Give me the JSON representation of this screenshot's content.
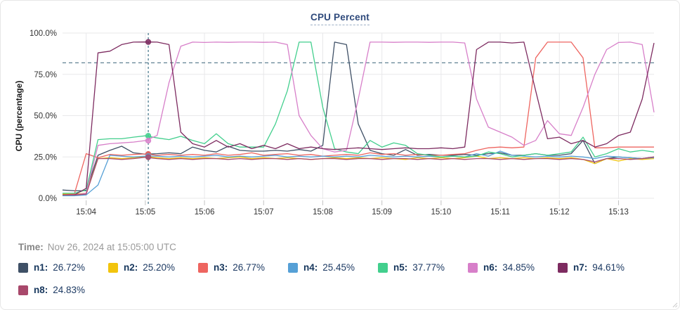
{
  "title": "CPU Percent",
  "time": {
    "label": "Time:",
    "value": "Nov 26, 2024 at 15:05:00 UTC"
  },
  "legend": [
    {
      "id": "n1",
      "label": "n1:",
      "value": "26.72%",
      "color": "#3f5066"
    },
    {
      "id": "n2",
      "label": "n2:",
      "value": "25.20%",
      "color": "#f2c40d"
    },
    {
      "id": "n3",
      "label": "n3:",
      "value": "26.77%",
      "color": "#ee6560"
    },
    {
      "id": "n4",
      "label": "n4:",
      "value": "25.45%",
      "color": "#56a0d6"
    },
    {
      "id": "n5",
      "label": "n5:",
      "value": "37.77%",
      "color": "#42cf8d"
    },
    {
      "id": "n6",
      "label": "n6:",
      "value": "34.85%",
      "color": "#d77fc9"
    },
    {
      "id": "n7",
      "label": "n7:",
      "value": "94.61%",
      "color": "#7d2b60"
    },
    {
      "id": "n8",
      "label": "n8:",
      "value": "24.83%",
      "color": "#a8486b"
    }
  ],
  "style_colors": {
    "grid": "#e8e8ea",
    "tick_text": "#333333",
    "axis_title": "#1a1a1a",
    "threshold_line": "#4e7388",
    "crosshair_line": "#3f7186",
    "title_text": "#2f4a7c"
  },
  "chart_data": {
    "type": "line",
    "title": "CPU Percent",
    "xlabel": "",
    "ylabel": "CPU (percentage)",
    "ylim": [
      0,
      100
    ],
    "y_tick_values": [
      0,
      25,
      50,
      75,
      100
    ],
    "y_tick_labels": [
      "0.0%",
      "25.0%",
      "50.0%",
      "75.0%",
      "100.0%"
    ],
    "x_tick_minutes": [
      4,
      5,
      6,
      7,
      8,
      9,
      10,
      11,
      12,
      13
    ],
    "x_tick_labels": [
      "15:04",
      "15:05",
      "15:06",
      "15:07",
      "15:08",
      "15:09",
      "15:10",
      "15:11",
      "15:12",
      "15:13"
    ],
    "x_range_minutes": [
      3.6,
      13.6
    ],
    "grid": true,
    "legend_position": "bottom",
    "threshold_percent": 82,
    "crosshair_minute": 5.05,
    "crosshair_index": 7,
    "crosshair_values": {
      "n1": 26.72,
      "n2": 25.2,
      "n3": 26.77,
      "n4": 25.45,
      "n5": 37.77,
      "n6": 34.85,
      "n7": 94.61,
      "n8": 24.83
    },
    "x_minutes": [
      3.6,
      3.8,
      4.0,
      4.2,
      4.4,
      4.6,
      4.8,
      5.0,
      5.2,
      5.4,
      5.6,
      5.8,
      6.0,
      6.2,
      6.4,
      6.6,
      6.8,
      7.0,
      7.2,
      7.4,
      7.6,
      7.8,
      8.0,
      8.2,
      8.4,
      8.6,
      8.8,
      9.0,
      9.2,
      9.4,
      9.6,
      9.8,
      10.0,
      10.2,
      10.4,
      10.6,
      10.8,
      11.0,
      11.2,
      11.4,
      11.6,
      11.8,
      12.0,
      12.2,
      12.4,
      12.6,
      12.8,
      13.0,
      13.2,
      13.4,
      13.6
    ],
    "series": [
      {
        "name": "n1",
        "color": "#3f5066",
        "values": [
          5,
          4.5,
          4.5,
          26,
          29,
          31.5,
          27.5,
          26.7,
          27,
          27.5,
          27,
          31,
          29,
          28,
          31.5,
          29,
          28.5,
          28.5,
          29,
          28.5,
          29.5,
          28.5,
          32,
          94.5,
          93,
          45,
          29,
          27,
          26,
          29.5,
          26,
          26.5,
          26,
          26,
          26.5,
          26,
          27,
          27.5,
          26,
          26,
          27,
          26,
          26,
          27,
          35,
          21,
          24,
          25,
          24.5,
          24,
          25
        ]
      },
      {
        "name": "n2",
        "color": "#f2c40d",
        "values": [
          2.5,
          2.5,
          3,
          24,
          24.5,
          24,
          24.5,
          25.2,
          24.5,
          24,
          24.5,
          24,
          24.5,
          24,
          24.5,
          25,
          24,
          24.5,
          24,
          24.5,
          24,
          23.5,
          24,
          24.5,
          24,
          24.5,
          24,
          24.5,
          24,
          23.5,
          24.5,
          24,
          24.5,
          24,
          24.5,
          25.5,
          24,
          24.5,
          24,
          24.5,
          24,
          24.5,
          24,
          24.5,
          23.5,
          21,
          24,
          22.5,
          24,
          23.5,
          24
        ]
      },
      {
        "name": "n3",
        "color": "#ee6560",
        "values": [
          2,
          2.5,
          27,
          24.5,
          26.5,
          26,
          26.5,
          26.8,
          26,
          26.5,
          26,
          26.5,
          26,
          27,
          26,
          26.5,
          27.5,
          26,
          26.5,
          27,
          26,
          26.5,
          25.5,
          26,
          26.5,
          26,
          27.5,
          26.5,
          27,
          26,
          26.5,
          26,
          26,
          26.5,
          27,
          29,
          30.5,
          31,
          30.5,
          31,
          85,
          94.5,
          94.5,
          94.5,
          85,
          30.5,
          30.5,
          31,
          31,
          31,
          31
        ]
      },
      {
        "name": "n4",
        "color": "#56a0d6",
        "values": [
          1.5,
          1.5,
          2,
          8,
          26,
          25.5,
          25,
          25.5,
          25.5,
          25,
          25.5,
          25,
          25.5,
          26,
          25,
          25.5,
          25,
          25.5,
          26,
          25,
          25.5,
          25,
          25.5,
          25,
          25.5,
          25,
          26,
          25.5,
          25,
          25.5,
          25,
          25.5,
          25,
          25.5,
          25,
          27,
          25.5,
          28.5,
          26,
          25.5,
          25,
          25.5,
          25,
          25.5,
          25,
          24,
          25.5,
          25,
          24.5,
          24,
          24.5
        ]
      },
      {
        "name": "n5",
        "color": "#42cf8d",
        "values": [
          3,
          3,
          5,
          35.5,
          36,
          36,
          37,
          37.8,
          36.5,
          35.5,
          37.5,
          35,
          33,
          39,
          33,
          31,
          31,
          31,
          45,
          65,
          94.5,
          94.5,
          55,
          30,
          28,
          27,
          35,
          31,
          33.5,
          32,
          27,
          26,
          25,
          25.5,
          25,
          25.5,
          28,
          27,
          25,
          26,
          27,
          26,
          27,
          28,
          37,
          25,
          27,
          30,
          28,
          29,
          28
        ]
      },
      {
        "name": "n6",
        "color": "#d77fc9",
        "values": [
          2,
          2,
          3,
          32,
          33,
          33.5,
          34,
          34.9,
          38,
          70,
          92,
          94.5,
          94.3,
          94.5,
          94.4,
          94.5,
          94.5,
          94.4,
          94.5,
          93,
          50,
          38,
          30,
          28,
          29,
          60,
          94.5,
          94.5,
          94.4,
          94.5,
          94.5,
          94.4,
          94.5,
          94.5,
          94,
          60,
          43,
          40,
          37,
          32,
          35,
          47,
          39,
          38,
          55,
          75,
          90,
          94.3,
          94.5,
          93,
          52
        ]
      },
      {
        "name": "n7",
        "color": "#7d2b60",
        "values": [
          2,
          2,
          6,
          88,
          89,
          93,
          94.5,
          94.6,
          94.5,
          93,
          40,
          33,
          31,
          35,
          31,
          33,
          30,
          32,
          30,
          33,
          30,
          31,
          30,
          29.5,
          30,
          30.5,
          30,
          29.5,
          30,
          30.5,
          30,
          30,
          30.5,
          30,
          31,
          90,
          94.5,
          94.5,
          94,
          94.5,
          65,
          36,
          37,
          33,
          35,
          31,
          33,
          38,
          40,
          60,
          94
        ]
      },
      {
        "name": "n8",
        "color": "#a8486b",
        "values": [
          2,
          2,
          2.5,
          24,
          24,
          23.5,
          24,
          24.8,
          24,
          23.5,
          24,
          23.5,
          24,
          24,
          23.5,
          24,
          23.5,
          24,
          24,
          23.5,
          24,
          23.5,
          24,
          24,
          23.5,
          24,
          24,
          23.5,
          24,
          24,
          23.5,
          24,
          23.5,
          24,
          23.5,
          24,
          24,
          23.5,
          24,
          23.5,
          24,
          24,
          23.5,
          24,
          23.5,
          22,
          24,
          24,
          23.5,
          24,
          25
        ]
      }
    ]
  }
}
